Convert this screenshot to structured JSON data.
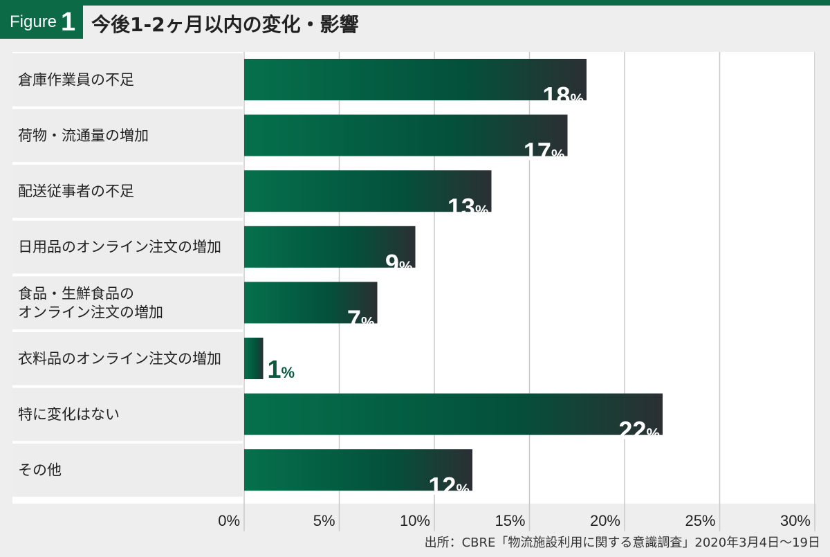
{
  "figure": {
    "label": "Figure",
    "number": "1"
  },
  "title": "今後1-2ヶ月以内の変化・影響",
  "source": "出所：CBRE「物流施設利用に関する意識調査」2020年3月4日〜19日",
  "colors": {
    "bar_start": "#05704c",
    "bar_mid": "#04503a",
    "bar_end": "#2b2f33",
    "label_outside": "#0c5a3e",
    "grid": "#c8c8c8"
  },
  "chart_data": {
    "type": "bar",
    "orientation": "horizontal",
    "categories": [
      "倉庫作業員の不足",
      "荷物・流通量の増加",
      "配送従事者の不足",
      "日用品のオンライン注文の増加",
      "食品・生鮮食品の\nオンライン注文の増加",
      "衣料品のオンライン注文の増加",
      "特に変化はない",
      "その他"
    ],
    "values": [
      18,
      17,
      13,
      9,
      7,
      1,
      22,
      12
    ],
    "unit": "%",
    "xlim": [
      0,
      30
    ],
    "xticks": [
      "0%",
      "5%",
      "10%",
      "15%",
      "20%",
      "25%",
      "30%"
    ],
    "grid": true
  }
}
